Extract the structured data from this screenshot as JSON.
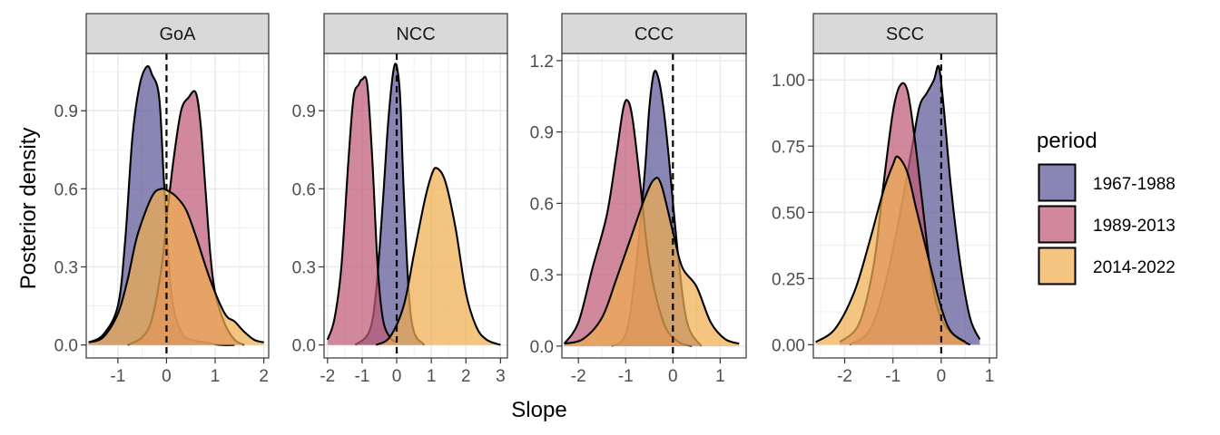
{
  "chart_data": {
    "type": "area",
    "chart_kind": "faceted density",
    "xlabel": "Slope",
    "ylabel": "Posterior density",
    "legend": {
      "title": "period",
      "position": "right",
      "entries": [
        {
          "name": "1967-1988",
          "color": "#5b5797"
        },
        {
          "name": "1989-2013",
          "color": "#bf5a76"
        },
        {
          "name": "2014-2022",
          "color": "#f0ad50"
        }
      ]
    },
    "reference_line": {
      "x": 0,
      "style": "dashed"
    },
    "grid": true,
    "panels": [
      {
        "label": "GoA",
        "xlim": [
          -1.65,
          2.1
        ],
        "ylim": [
          -0.05,
          1.12
        ],
        "xticks": [
          -1,
          0,
          1,
          2
        ],
        "xtick_labels": [
          "-1",
          "0",
          "1",
          "2"
        ],
        "yticks": [
          0.0,
          0.3,
          0.6,
          0.9
        ],
        "ytick_labels": [
          "0.0",
          "0.3",
          "0.6",
          "0.9"
        ],
        "series": [
          {
            "name": "1967-1988",
            "x": [
              -1.6,
              -1.3,
              -1.0,
              -0.85,
              -0.7,
              -0.55,
              -0.4,
              -0.3,
              -0.15,
              -0.05,
              0.1,
              0.3,
              0.5,
              0.8,
              1.1,
              1.4
            ],
            "y": [
              0.01,
              0.04,
              0.15,
              0.4,
              0.8,
              1.0,
              1.07,
              1.04,
              0.95,
              0.62,
              0.2,
              0.05,
              0.02,
              0.01,
              0.0,
              0.0
            ]
          },
          {
            "name": "1989-2013",
            "x": [
              -0.8,
              -0.5,
              -0.3,
              -0.1,
              0.0,
              0.15,
              0.3,
              0.45,
              0.6,
              0.7,
              0.8,
              0.9,
              1.0,
              1.2,
              1.4,
              1.6
            ],
            "y": [
              0.0,
              0.03,
              0.1,
              0.3,
              0.48,
              0.72,
              0.9,
              0.95,
              0.97,
              0.85,
              0.6,
              0.35,
              0.2,
              0.08,
              0.02,
              0.0
            ]
          },
          {
            "name": "2014-2022",
            "x": [
              -1.6,
              -1.3,
              -1.0,
              -0.8,
              -0.6,
              -0.3,
              -0.1,
              0.05,
              0.2,
              0.4,
              0.6,
              0.9,
              1.2,
              1.4,
              1.6,
              1.8,
              2.0
            ],
            "y": [
              0.01,
              0.03,
              0.12,
              0.25,
              0.42,
              0.57,
              0.6,
              0.59,
              0.57,
              0.52,
              0.42,
              0.25,
              0.12,
              0.09,
              0.05,
              0.02,
              0.01
            ]
          }
        ]
      },
      {
        "label": "NCC",
        "xlim": [
          -2.1,
          3.2
        ],
        "ylim": [
          -0.05,
          1.12
        ],
        "xticks": [
          -2,
          -1,
          0,
          1,
          2,
          3
        ],
        "xtick_labels": [
          "-2",
          "-1",
          "0",
          "1",
          "2",
          "3"
        ],
        "yticks": [
          0.0,
          0.3,
          0.6,
          0.9
        ],
        "ytick_labels": [
          "0.0",
          "0.3",
          "0.6",
          "0.9"
        ],
        "series": [
          {
            "name": "1967-1988",
            "x": [
              -1.2,
              -0.8,
              -0.6,
              -0.4,
              -0.25,
              -0.1,
              0.0,
              0.1,
              0.2,
              0.35,
              0.5,
              0.8
            ],
            "y": [
              0.0,
              0.05,
              0.2,
              0.55,
              0.85,
              1.05,
              1.07,
              0.95,
              0.6,
              0.2,
              0.05,
              0.0
            ]
          },
          {
            "name": "1989-2013",
            "x": [
              -2.0,
              -1.8,
              -1.6,
              -1.4,
              -1.25,
              -1.1,
              -1.0,
              -0.85,
              -0.7,
              -0.55,
              -0.4,
              -0.2,
              0.0
            ],
            "y": [
              0.02,
              0.1,
              0.3,
              0.7,
              0.95,
              1.0,
              1.02,
              1.0,
              0.7,
              0.3,
              0.1,
              0.03,
              0.01
            ]
          },
          {
            "name": "2014-2022",
            "x": [
              -0.6,
              -0.2,
              0.2,
              0.5,
              0.8,
              1.0,
              1.15,
              1.4,
              1.7,
              2.0,
              2.3,
              2.6,
              3.0
            ],
            "y": [
              0.0,
              0.03,
              0.15,
              0.35,
              0.55,
              0.65,
              0.68,
              0.63,
              0.45,
              0.2,
              0.07,
              0.02,
              0.0
            ]
          }
        ]
      },
      {
        "label": "CCC",
        "xlim": [
          -2.35,
          1.55
        ],
        "ylim": [
          -0.05,
          1.23
        ],
        "xticks": [
          -2,
          -1,
          0,
          1
        ],
        "xtick_labels": [
          "-2",
          "-1",
          "0",
          "1"
        ],
        "yticks": [
          0.0,
          0.3,
          0.6,
          0.9,
          1.2
        ],
        "ytick_labels": [
          "0.0",
          "0.3",
          "0.6",
          "0.9",
          "1.2"
        ],
        "series": [
          {
            "name": "1967-1988",
            "x": [
              -1.3,
              -1.0,
              -0.8,
              -0.6,
              -0.5,
              -0.4,
              -0.3,
              -0.2,
              -0.1,
              0.1,
              0.3,
              0.6
            ],
            "y": [
              0.0,
              0.05,
              0.3,
              0.72,
              1.0,
              1.15,
              1.12,
              1.0,
              0.82,
              0.4,
              0.1,
              0.0
            ]
          },
          {
            "name": "1989-2013",
            "x": [
              -2.3,
              -2.0,
              -1.7,
              -1.4,
              -1.2,
              -1.05,
              -0.95,
              -0.85,
              -0.7,
              -0.5,
              -0.2,
              0.1,
              0.4
            ],
            "y": [
              0.01,
              0.1,
              0.33,
              0.55,
              0.8,
              1.0,
              1.03,
              0.95,
              0.7,
              0.35,
              0.1,
              0.02,
              0.0
            ]
          },
          {
            "name": "2014-2022",
            "x": [
              -2.3,
              -1.9,
              -1.5,
              -1.2,
              -0.9,
              -0.6,
              -0.4,
              -0.25,
              0.0,
              0.2,
              0.5,
              0.8,
              1.1,
              1.4
            ],
            "y": [
              0.01,
              0.03,
              0.12,
              0.28,
              0.45,
              0.62,
              0.7,
              0.68,
              0.48,
              0.33,
              0.25,
              0.1,
              0.03,
              0.01
            ]
          }
        ]
      },
      {
        "label": "SCC",
        "xlim": [
          -2.65,
          1.15
        ],
        "ylim": [
          -0.05,
          1.1
        ],
        "xticks": [
          -2,
          -1,
          0,
          1
        ],
        "xtick_labels": [
          "-2",
          "-1",
          "0",
          "1"
        ],
        "yticks": [
          0.0,
          0.25,
          0.5,
          0.75,
          1.0
        ],
        "ytick_labels": [
          "0.00",
          "0.25",
          "0.50",
          "0.75",
          "1.00"
        ],
        "series": [
          {
            "name": "1967-1988",
            "x": [
              -1.9,
              -1.5,
              -1.2,
              -0.9,
              -0.6,
              -0.45,
              -0.3,
              -0.15,
              -0.05,
              0.05,
              0.2,
              0.4,
              0.6,
              0.8
            ],
            "y": [
              0.0,
              0.05,
              0.2,
              0.45,
              0.75,
              0.9,
              0.95,
              1.0,
              1.05,
              0.9,
              0.6,
              0.3,
              0.1,
              0.02
            ]
          },
          {
            "name": "1989-2013",
            "x": [
              -2.1,
              -1.7,
              -1.4,
              -1.2,
              -1.0,
              -0.85,
              -0.7,
              -0.55,
              -0.4,
              -0.2,
              0.0,
              0.3,
              0.6
            ],
            "y": [
              0.01,
              0.08,
              0.3,
              0.6,
              0.88,
              0.98,
              0.96,
              0.78,
              0.55,
              0.25,
              0.1,
              0.03,
              0.0
            ]
          },
          {
            "name": "2014-2022",
            "x": [
              -2.6,
              -2.2,
              -1.8,
              -1.5,
              -1.2,
              -1.0,
              -0.9,
              -0.7,
              -0.5,
              -0.2,
              0.0,
              0.2,
              0.5
            ],
            "y": [
              0.01,
              0.06,
              0.2,
              0.38,
              0.58,
              0.68,
              0.71,
              0.65,
              0.5,
              0.28,
              0.14,
              0.05,
              0.01
            ]
          }
        ]
      }
    ]
  }
}
